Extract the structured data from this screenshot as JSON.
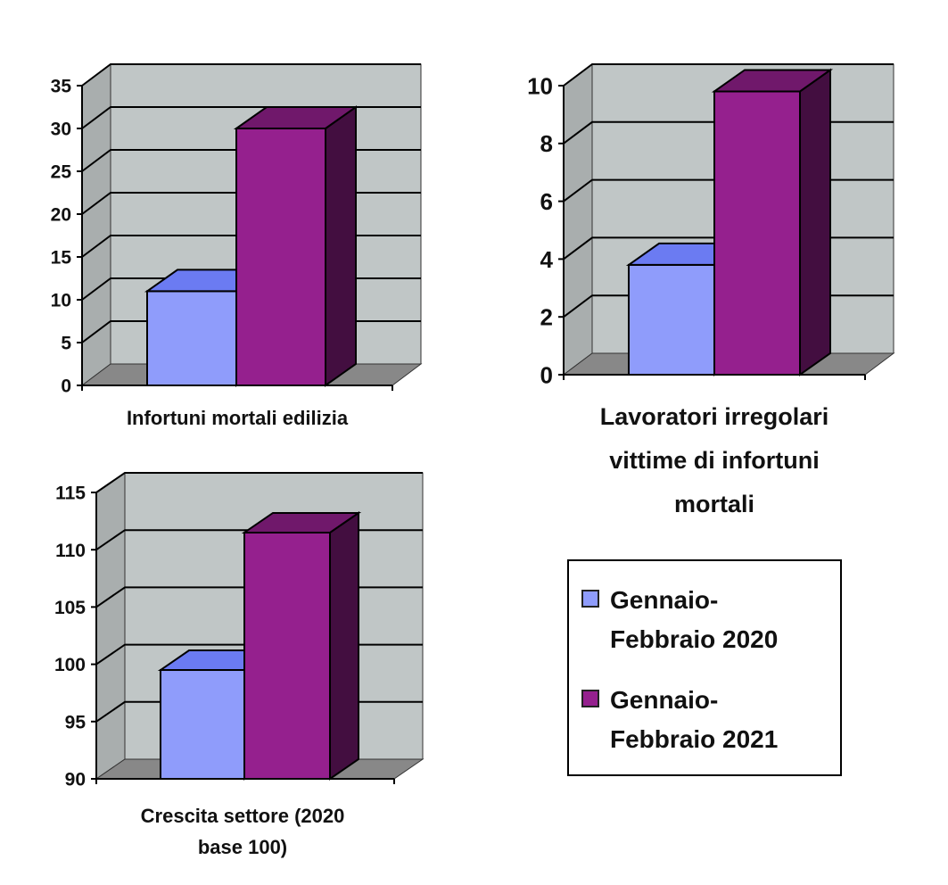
{
  "colors": {
    "series1": "#8f9cfb",
    "series2": "#95208e",
    "wall": "#c0c6c6",
    "floor": "#888888",
    "grid": "#000000"
  },
  "chart_data": [
    {
      "type": "bar",
      "categories": [
        "Infortuni mortali edilizia"
      ],
      "series": [
        {
          "name": "Gennaio-Febbraio 2020",
          "values": [
            11
          ]
        },
        {
          "name": "Gennaio-Febbraio 2021",
          "values": [
            30
          ]
        }
      ],
      "ylim": [
        0,
        35
      ],
      "yticks": [
        "0",
        "5",
        "10",
        "15",
        "20",
        "25",
        "30",
        "35"
      ],
      "grid": true,
      "legend": "none"
    },
    {
      "type": "bar",
      "categories": [
        "Lavoratori irregolari vittime di infortuni mortali"
      ],
      "series": [
        {
          "name": "Gennaio-Febbraio 2020",
          "values": [
            3.8
          ]
        },
        {
          "name": "Gennaio-Febbraio 2021",
          "values": [
            9.8
          ]
        }
      ],
      "ylim": [
        0,
        10
      ],
      "yticks": [
        "0",
        "2",
        "4",
        "6",
        "8",
        "10"
      ],
      "grid": true,
      "legend": "none"
    },
    {
      "type": "bar",
      "categories": [
        "Crescita settore (2020 base 100)"
      ],
      "series": [
        {
          "name": "Gennaio-Febbraio 2020",
          "values": [
            99.5
          ]
        },
        {
          "name": "Gennaio-Febbraio 2021",
          "values": [
            111.5
          ]
        }
      ],
      "ylim": [
        90,
        115
      ],
      "yticks": [
        "90",
        "95",
        "100",
        "105",
        "110",
        "115"
      ],
      "grid": true,
      "legend": "right"
    }
  ],
  "category_label_lines": [
    [
      "Infortuni mortali edilizia"
    ],
    [
      "Lavoratori irregolari",
      "vittime di infortuni",
      "mortali"
    ],
    [
      "Crescita settore (2020",
      "base 100)"
    ]
  ],
  "legend": {
    "items": [
      {
        "line1": "Gennaio-",
        "line2": "Febbraio 2020"
      },
      {
        "line1": "Gennaio-",
        "line2": "Febbraio 2021"
      }
    ]
  }
}
